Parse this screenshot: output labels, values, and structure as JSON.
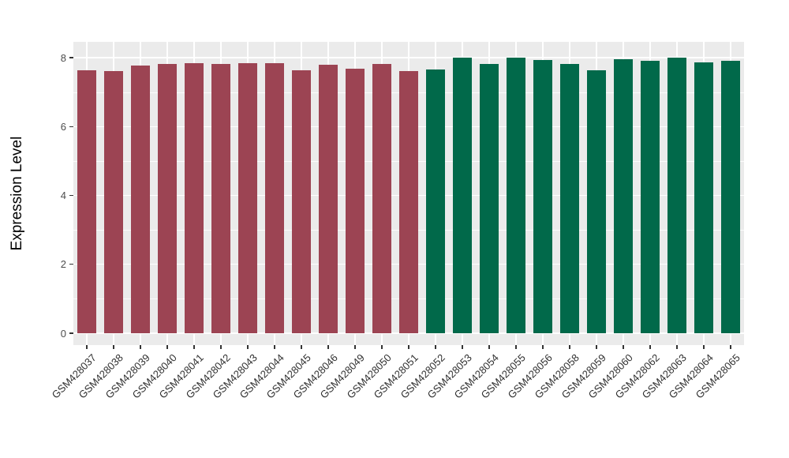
{
  "figure": {
    "title": "",
    "y_axis_title": "Expression Level",
    "panel_bg": "#EBEBEB",
    "grid_color": "#FFFFFF",
    "tick_color": "#333333",
    "axis_text_color": "#4D4D4D"
  },
  "chart_data": {
    "type": "bar",
    "title": "",
    "xlabel": "",
    "ylabel": "Expression Level",
    "ylim": [
      0,
      8.4
    ],
    "y_ticks": [
      0,
      2,
      4,
      6,
      8
    ],
    "y_minor_ticks": [
      1,
      3,
      5,
      7
    ],
    "grid": true,
    "legend_position": "none",
    "x_label_rotation_deg": 45,
    "categories": [
      "GSM428037",
      "GSM428038",
      "GSM428039",
      "GSM428040",
      "GSM428041",
      "GSM428042",
      "GSM428043",
      "GSM428044",
      "GSM428045",
      "GSM428046",
      "GSM428049",
      "GSM428050",
      "GSM428051",
      "GSM428052",
      "GSM428053",
      "GSM428054",
      "GSM428055",
      "GSM428056",
      "GSM428058",
      "GSM428059",
      "GSM428060",
      "GSM428062",
      "GSM428063",
      "GSM428064",
      "GSM428065"
    ],
    "values": [
      7.63,
      7.6,
      7.77,
      7.81,
      7.83,
      7.82,
      7.83,
      7.83,
      7.64,
      7.79,
      7.67,
      7.81,
      7.62,
      7.66,
      7.99,
      7.82,
      7.99,
      7.94,
      7.81,
      7.64,
      7.95,
      7.9,
      7.99,
      7.87,
      7.91
    ],
    "bar_groups": [
      "group1",
      "group1",
      "group1",
      "group1",
      "group1",
      "group1",
      "group1",
      "group1",
      "group1",
      "group1",
      "group1",
      "group1",
      "group1",
      "group2",
      "group2",
      "group2",
      "group2",
      "group2",
      "group2",
      "group2",
      "group2",
      "group2",
      "group2",
      "group2",
      "group2"
    ],
    "group_colors": {
      "group1": "#9C4453",
      "group2": "#01694A"
    }
  }
}
